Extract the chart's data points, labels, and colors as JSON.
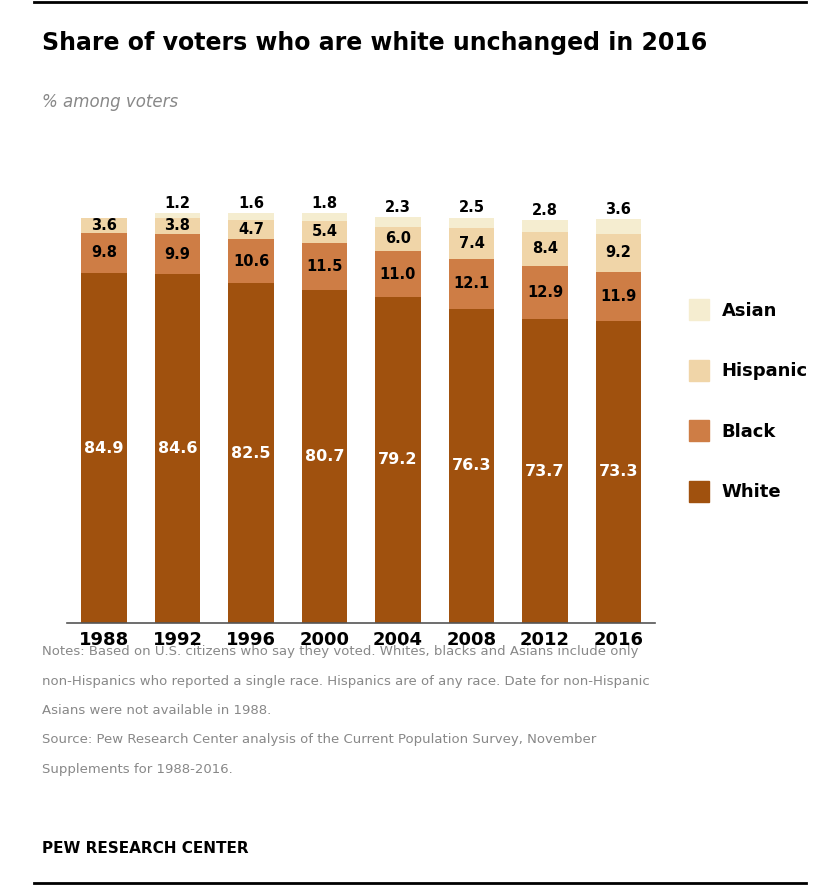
{
  "title": "Share of voters who are white unchanged in 2016",
  "subtitle": "% among voters",
  "years": [
    "1988",
    "1992",
    "1996",
    "2000",
    "2004",
    "2008",
    "2012",
    "2016"
  ],
  "white": [
    84.9,
    84.6,
    82.5,
    80.7,
    79.2,
    76.3,
    73.7,
    73.3
  ],
  "black": [
    9.8,
    9.9,
    10.6,
    11.5,
    11.0,
    12.1,
    12.9,
    11.9
  ],
  "hispanic": [
    3.6,
    3.8,
    4.7,
    5.4,
    6.0,
    7.4,
    8.4,
    9.2
  ],
  "asian": [
    0.0,
    1.2,
    1.6,
    1.8,
    2.3,
    2.5,
    2.8,
    3.6
  ],
  "colors": {
    "white": "#A0510E",
    "black": "#CE7D45",
    "hispanic": "#F0D5A8",
    "asian": "#F5EDD0"
  },
  "notes_line1": "Notes: Based on U.S. citizens who say they voted. Whites, blacks and Asians include only",
  "notes_line2": "non-Hispanics who reported a single race. Hispanics are of any race. Date for non-Hispanic",
  "notes_line3": "Asians were not available in 1988.",
  "notes_line4": "Source: Pew Research Center analysis of the Current Population Survey, November",
  "notes_line5": "Supplements for 1988-2016.",
  "footer": "PEW RESEARCH CENTER",
  "bar_width": 0.62
}
